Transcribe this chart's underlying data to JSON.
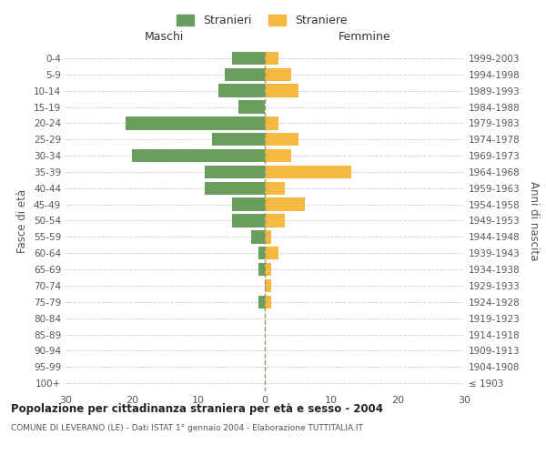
{
  "age_groups": [
    "100+",
    "95-99",
    "90-94",
    "85-89",
    "80-84",
    "75-79",
    "70-74",
    "65-69",
    "60-64",
    "55-59",
    "50-54",
    "45-49",
    "40-44",
    "35-39",
    "30-34",
    "25-29",
    "20-24",
    "15-19",
    "10-14",
    "5-9",
    "0-4"
  ],
  "birth_years": [
    "≤ 1903",
    "1904-1908",
    "1909-1913",
    "1914-1918",
    "1919-1923",
    "1924-1928",
    "1929-1933",
    "1934-1938",
    "1939-1943",
    "1944-1948",
    "1949-1953",
    "1954-1958",
    "1959-1963",
    "1964-1968",
    "1969-1973",
    "1974-1978",
    "1979-1983",
    "1984-1988",
    "1989-1993",
    "1994-1998",
    "1999-2003"
  ],
  "males": [
    0,
    0,
    0,
    0,
    0,
    1,
    0,
    1,
    1,
    2,
    5,
    5,
    9,
    9,
    20,
    8,
    21,
    4,
    7,
    6,
    5
  ],
  "females": [
    0,
    0,
    0,
    0,
    0,
    1,
    1,
    1,
    2,
    1,
    3,
    6,
    3,
    13,
    4,
    5,
    2,
    0,
    5,
    4,
    2
  ],
  "male_color": "#6a9e5f",
  "female_color": "#f5b942",
  "background_color": "#ffffff",
  "grid_color": "#cccccc",
  "title": "Popolazione per cittadinanza straniera per età e sesso - 2004",
  "subtitle": "COMUNE DI LEVERANO (LE) - Dati ISTAT 1° gennaio 2004 - Elaborazione TUTTITALIA.IT",
  "xlabel_left": "Maschi",
  "xlabel_right": "Femmine",
  "ylabel_left": "Fasce di età",
  "ylabel_right": "Anni di nascita",
  "legend_male": "Stranieri",
  "legend_female": "Straniere",
  "xlim": 30,
  "bar_height": 0.8
}
